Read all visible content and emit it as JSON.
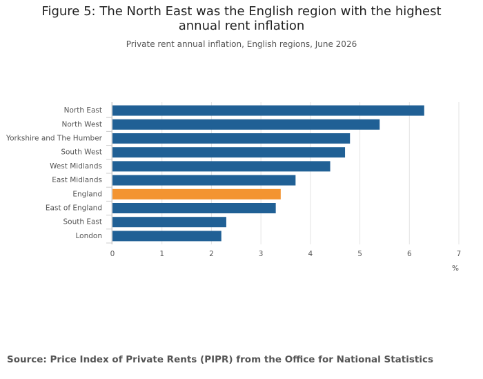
{
  "chart_data": {
    "type": "bar",
    "orientation": "horizontal",
    "title": "Figure 5: The North East was the English region with the highest annual rent inflation",
    "subtitle": "Private rent annual inflation, English regions, June 2026",
    "source": "Source: Price Index of Private Rents (PIPR) from the Office for National Statistics",
    "x_label": "%",
    "categories": [
      "North East",
      "North West",
      "Yorkshire and The Humber",
      "South West",
      "West Midlands",
      "East Midlands",
      "England",
      "East of England",
      "South East",
      "London"
    ],
    "values": [
      6.3,
      5.4,
      4.8,
      4.7,
      4.4,
      3.7,
      3.4,
      3.3,
      2.3,
      2.2
    ],
    "colors": [
      "#206095",
      "#206095",
      "#206095",
      "#206095",
      "#206095",
      "#206095",
      "#f39431",
      "#206095",
      "#206095",
      "#206095"
    ],
    "xlim": [
      0,
      7
    ],
    "xticks": [
      0,
      1,
      2,
      3,
      4,
      5,
      6,
      7
    ],
    "grid": true
  }
}
